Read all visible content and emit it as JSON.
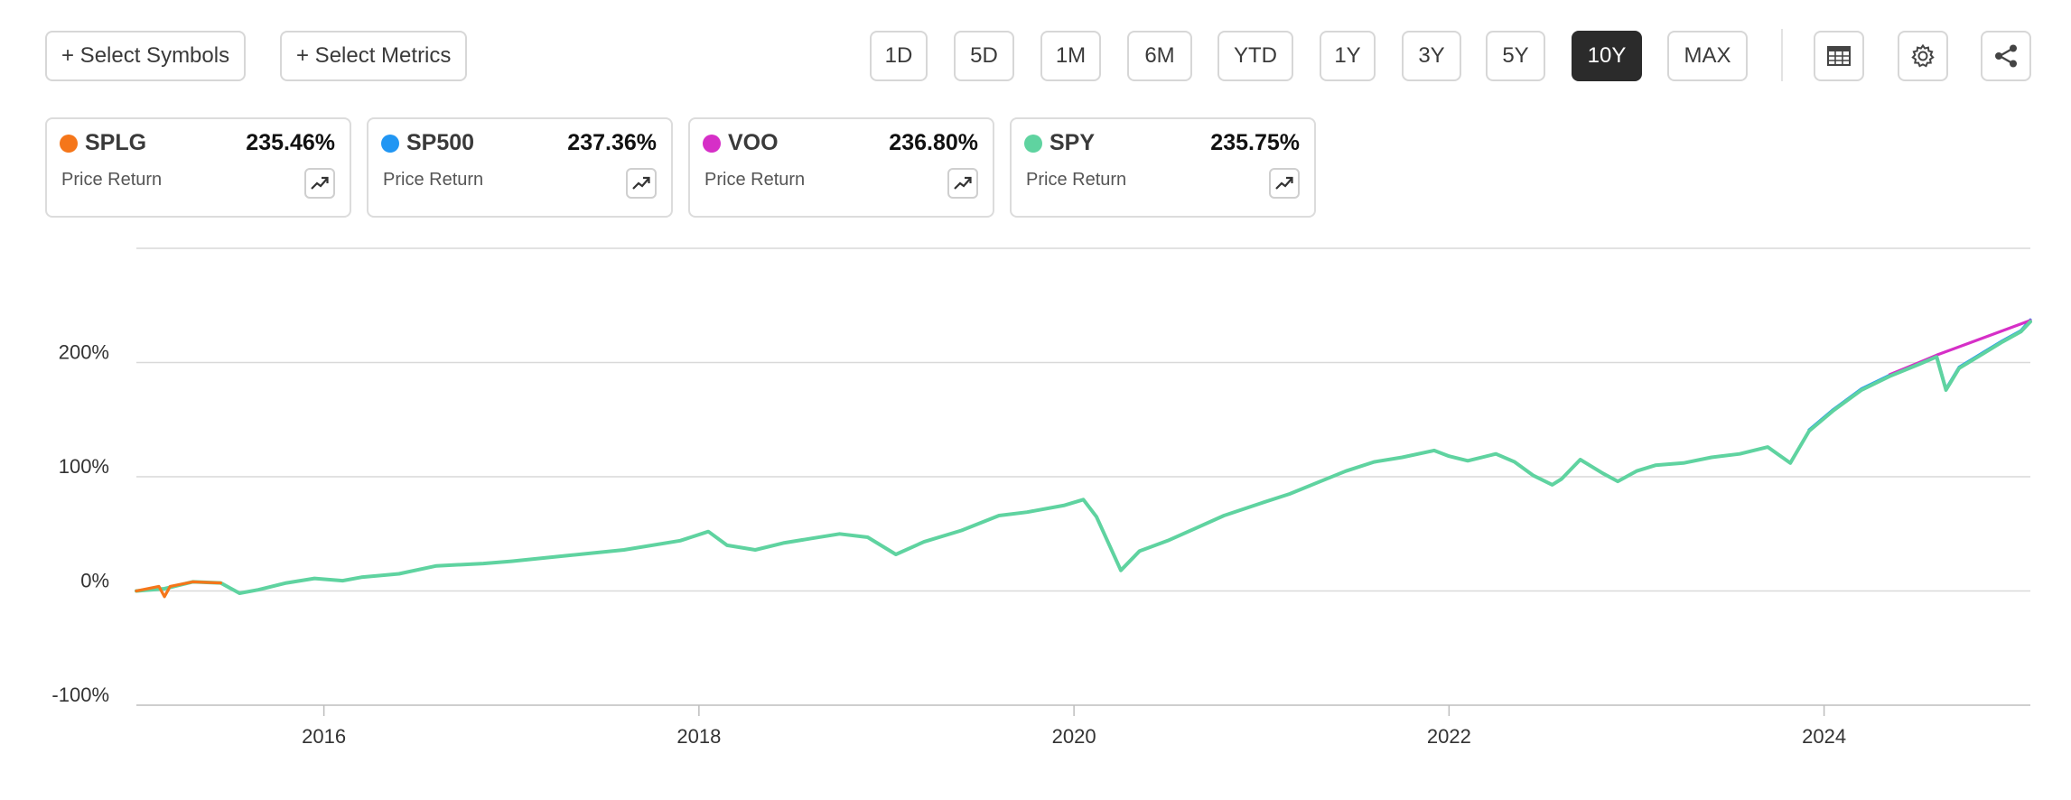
{
  "toolbar": {
    "select_symbols_label": "+ Select Symbols",
    "select_metrics_label": "+ Select Metrics",
    "ranges": [
      "1D",
      "5D",
      "1M",
      "6M",
      "YTD",
      "1Y",
      "3Y",
      "5Y",
      "10Y",
      "MAX"
    ],
    "active_range": "10Y",
    "icons": [
      "table-icon",
      "gear-icon",
      "share-icon"
    ]
  },
  "legend": [
    {
      "symbol": "SPLG",
      "value": "235.46%",
      "metric": "Price Return",
      "color": "#f5761a"
    },
    {
      "symbol": "SP500",
      "value": "237.36%",
      "metric": "Price Return",
      "color": "#2196f3"
    },
    {
      "symbol": "VOO",
      "value": "236.80%",
      "metric": "Price Return",
      "color": "#d62fc7"
    },
    {
      "symbol": "SPY",
      "value": "235.75%",
      "metric": "Price Return",
      "color": "#5fd3a0"
    }
  ],
  "chart_data": {
    "type": "line",
    "title": "",
    "xlabel": "",
    "ylabel": "",
    "x_range": [
      2015.0,
      2025.1
    ],
    "ylim": [
      -100,
      300
    ],
    "y_ticks": [
      -100,
      0,
      100,
      200
    ],
    "y_tick_labels": [
      "-100%",
      "0%",
      "100%",
      "200%"
    ],
    "x_ticks": [
      2016,
      2018,
      2020,
      2022,
      2024
    ],
    "x_tick_labels": [
      "2016",
      "2018",
      "2020",
      "2022",
      "2024"
    ],
    "grid": true,
    "series": [
      {
        "name": "SPY",
        "color": "#5fd3a0",
        "points": [
          [
            2015.0,
            0
          ],
          [
            2015.15,
            2
          ],
          [
            2015.3,
            8
          ],
          [
            2015.45,
            7
          ],
          [
            2015.55,
            -2
          ],
          [
            2015.65,
            1
          ],
          [
            2015.8,
            7
          ],
          [
            2015.95,
            11
          ],
          [
            2016.1,
            9
          ],
          [
            2016.2,
            12
          ],
          [
            2016.4,
            15
          ],
          [
            2016.6,
            22
          ],
          [
            2016.85,
            24
          ],
          [
            2017.0,
            26
          ],
          [
            2017.3,
            31
          ],
          [
            2017.6,
            36
          ],
          [
            2017.9,
            44
          ],
          [
            2018.05,
            52
          ],
          [
            2018.15,
            40
          ],
          [
            2018.3,
            36
          ],
          [
            2018.45,
            42
          ],
          [
            2018.6,
            46
          ],
          [
            2018.75,
            50
          ],
          [
            2018.9,
            47
          ],
          [
            2019.05,
            32
          ],
          [
            2019.2,
            43
          ],
          [
            2019.4,
            53
          ],
          [
            2019.6,
            66
          ],
          [
            2019.75,
            69
          ],
          [
            2019.95,
            75
          ],
          [
            2020.05,
            80
          ],
          [
            2020.12,
            65
          ],
          [
            2020.25,
            18
          ],
          [
            2020.35,
            35
          ],
          [
            2020.5,
            44
          ],
          [
            2020.65,
            55
          ],
          [
            2020.8,
            66
          ],
          [
            2021.0,
            77
          ],
          [
            2021.15,
            85
          ],
          [
            2021.3,
            95
          ],
          [
            2021.45,
            105
          ],
          [
            2021.6,
            113
          ],
          [
            2021.75,
            117
          ],
          [
            2021.92,
            123
          ],
          [
            2022.0,
            118
          ],
          [
            2022.1,
            114
          ],
          [
            2022.25,
            120
          ],
          [
            2022.35,
            113
          ],
          [
            2022.45,
            101
          ],
          [
            2022.55,
            93
          ],
          [
            2022.6,
            98
          ],
          [
            2022.7,
            115
          ],
          [
            2022.82,
            103
          ],
          [
            2022.9,
            96
          ],
          [
            2023.0,
            105
          ],
          [
            2023.1,
            110
          ],
          [
            2023.25,
            112
          ],
          [
            2023.4,
            117
          ],
          [
            2023.55,
            120
          ],
          [
            2023.7,
            126
          ],
          [
            2023.82,
            112
          ],
          [
            2023.92,
            140
          ],
          [
            2024.05,
            158
          ],
          [
            2024.2,
            176
          ],
          [
            2024.35,
            188
          ],
          [
            2024.5,
            198
          ],
          [
            2024.6,
            205
          ],
          [
            2024.65,
            176
          ],
          [
            2024.72,
            195
          ],
          [
            2024.85,
            208
          ],
          [
            2024.95,
            218
          ],
          [
            2025.05,
            227
          ],
          [
            2025.1,
            235.75
          ]
        ]
      },
      {
        "name": "SPLG",
        "color": "#f5761a",
        "points": [
          [
            2015.0,
            0
          ],
          [
            2015.12,
            4
          ],
          [
            2015.15,
            -5
          ],
          [
            2015.18,
            4
          ],
          [
            2015.3,
            8
          ],
          [
            2015.45,
            7
          ]
        ]
      },
      {
        "name": "SP500",
        "color": "#2196f3",
        "points": [
          [
            2023.92,
            141
          ],
          [
            2024.05,
            159
          ],
          [
            2024.2,
            177
          ],
          [
            2024.35,
            189
          ],
          [
            2024.5,
            199
          ],
          [
            2024.6,
            206
          ],
          [
            2024.65,
            177
          ],
          [
            2024.72,
            196
          ],
          [
            2024.85,
            209
          ],
          [
            2024.95,
            219
          ],
          [
            2025.05,
            228
          ],
          [
            2025.1,
            237.36
          ]
        ]
      },
      {
        "name": "VOO",
        "color": "#d62fc7",
        "points": [
          [
            2024.35,
            189.5
          ],
          [
            2024.5,
            199.5
          ],
          [
            2024.6,
            206.5
          ],
          [
            2025.1,
            236.8
          ]
        ]
      }
    ]
  }
}
